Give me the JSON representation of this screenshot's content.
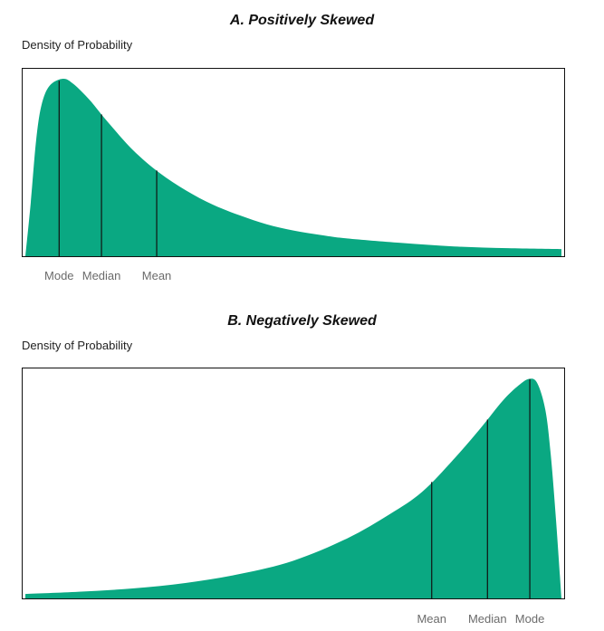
{
  "chart_data": [
    {
      "type": "area",
      "title": "A. Positively Skewed",
      "ylabel": "Density of Probability",
      "xlabel": "",
      "fill_color": "#0aa882",
      "marker_color": "#111111",
      "shape": "right-skewed density",
      "curve": [
        [
          0,
          0.0
        ],
        [
          0.01,
          0.3
        ],
        [
          0.02,
          0.65
        ],
        [
          0.03,
          0.85
        ],
        [
          0.045,
          0.96
        ],
        [
          0.07,
          1.0
        ],
        [
          0.09,
          0.97
        ],
        [
          0.12,
          0.88
        ],
        [
          0.15,
          0.77
        ],
        [
          0.2,
          0.6
        ],
        [
          0.25,
          0.47
        ],
        [
          0.3,
          0.37
        ],
        [
          0.35,
          0.29
        ],
        [
          0.4,
          0.23
        ],
        [
          0.45,
          0.18
        ],
        [
          0.5,
          0.145
        ],
        [
          0.55,
          0.12
        ],
        [
          0.6,
          0.1
        ],
        [
          0.7,
          0.075
        ],
        [
          0.8,
          0.055
        ],
        [
          0.9,
          0.045
        ],
        [
          1.0,
          0.04
        ]
      ],
      "markers": [
        {
          "label": "Mode",
          "x": 0.063
        },
        {
          "label": "Median",
          "x": 0.142
        },
        {
          "label": "Mean",
          "x": 0.245
        }
      ],
      "grid": false
    },
    {
      "type": "area",
      "title": "B. Negatively Skewed",
      "ylabel": "Density of Probability",
      "xlabel": "",
      "fill_color": "#0aa882",
      "marker_color": "#111111",
      "shape": "left-skewed density",
      "curve": [
        [
          0,
          0.02
        ],
        [
          0.1,
          0.03
        ],
        [
          0.2,
          0.045
        ],
        [
          0.3,
          0.07
        ],
        [
          0.4,
          0.11
        ],
        [
          0.5,
          0.17
        ],
        [
          0.6,
          0.27
        ],
        [
          0.68,
          0.38
        ],
        [
          0.74,
          0.48
        ],
        [
          0.8,
          0.63
        ],
        [
          0.85,
          0.77
        ],
        [
          0.89,
          0.89
        ],
        [
          0.92,
          0.96
        ],
        [
          0.94,
          0.99
        ],
        [
          0.955,
          0.97
        ],
        [
          0.97,
          0.85
        ],
        [
          0.98,
          0.65
        ],
        [
          0.99,
          0.35
        ],
        [
          1.0,
          0.0
        ]
      ],
      "markers": [
        {
          "label": "Mean",
          "x": 0.758
        },
        {
          "label": "Median",
          "x": 0.862
        },
        {
          "label": "Mode",
          "x": 0.941
        }
      ],
      "grid": false
    }
  ]
}
